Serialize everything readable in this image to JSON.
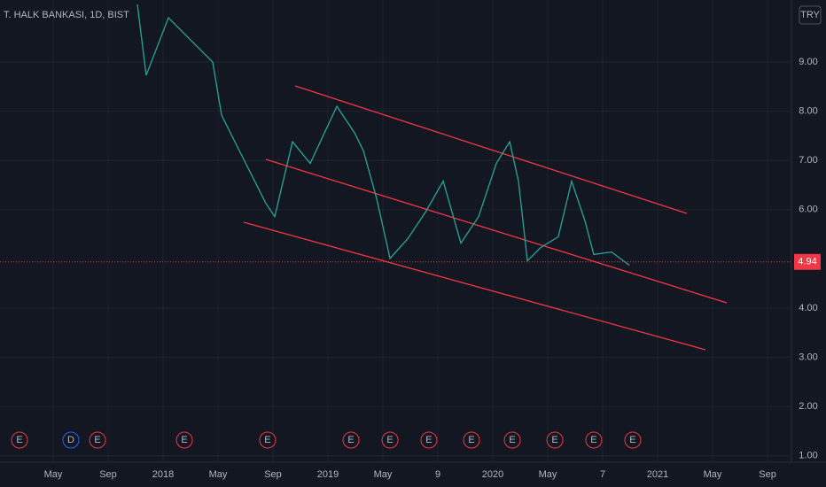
{
  "chart_data": {
    "type": "line",
    "title": "T. HALK BANKASI, 1D, BIST",
    "currency": "TRY",
    "grid": true,
    "color": "#26a69a",
    "x": [
      10.13,
      10.77,
      12.39,
      14.0,
      15.61,
      16.26,
      17.55,
      19.48,
      20.13,
      21.42,
      22.71,
      24.65,
      25.94,
      26.58,
      27.55,
      28.52,
      29.81,
      31.1,
      32.39,
      33.68,
      34.97,
      36.26,
      37.23,
      37.87,
      38.52,
      39.48,
      40.77,
      41.74,
      42.71,
      43.35,
      44.65,
      45.94
    ],
    "values": [
      10.17,
      8.73,
      9.9,
      9.45,
      9.0,
      7.92,
      7.2,
      6.13,
      5.86,
      7.38,
      6.94,
      8.1,
      7.56,
      7.2,
      6.22,
      5.01,
      5.41,
      5.95,
      6.58,
      5.32,
      5.86,
      6.94,
      7.38,
      6.58,
      4.96,
      5.23,
      5.45,
      6.58,
      5.77,
      5.09,
      5.14,
      4.87
    ],
    "last_price": {
      "value": 4.94,
      "label": "4.94"
    },
    "xlim": [
      0.13,
      57.74
    ],
    "xticks": [
      {
        "value": 4,
        "label": "May"
      },
      {
        "value": 8,
        "label": "Sep"
      },
      {
        "value": 12,
        "label": "2018"
      },
      {
        "value": 16,
        "label": "May"
      },
      {
        "value": 20,
        "label": "Sep"
      },
      {
        "value": 24,
        "label": "2019"
      },
      {
        "value": 28,
        "label": "May"
      },
      {
        "value": 32,
        "label": "9"
      },
      {
        "value": 36,
        "label": "2020"
      },
      {
        "value": 40,
        "label": "May"
      },
      {
        "value": 44,
        "label": "7"
      },
      {
        "value": 48,
        "label": "2021"
      },
      {
        "value": 52,
        "label": "May"
      },
      {
        "value": 56,
        "label": "Sep"
      }
    ],
    "ylim": [
      0.87,
      10.26
    ],
    "yticks": [
      {
        "value": 1,
        "label": "1.00"
      },
      {
        "value": 2,
        "label": "2.00"
      },
      {
        "value": 3,
        "label": "3.00"
      },
      {
        "value": 4,
        "label": "4.00"
      },
      {
        "value": 6,
        "label": "6.00"
      },
      {
        "value": 7,
        "label": "7.00"
      },
      {
        "value": 8,
        "label": "8.00"
      },
      {
        "value": 9,
        "label": "9.00"
      }
    ],
    "events": [
      {
        "x": 1.55,
        "label": "E"
      },
      {
        "x": 5.29,
        "label": "D"
      },
      {
        "x": 7.23,
        "label": "E"
      },
      {
        "x": 13.55,
        "label": "E"
      },
      {
        "x": 19.61,
        "label": "E"
      },
      {
        "x": 25.68,
        "label": "E"
      },
      {
        "x": 28.52,
        "label": "E"
      },
      {
        "x": 31.35,
        "label": "E"
      },
      {
        "x": 34.45,
        "label": "E"
      },
      {
        "x": 37.42,
        "label": "E"
      },
      {
        "x": 40.52,
        "label": "E"
      },
      {
        "x": 43.35,
        "label": "E"
      },
      {
        "x": 46.19,
        "label": "E"
      }
    ]
  }
}
